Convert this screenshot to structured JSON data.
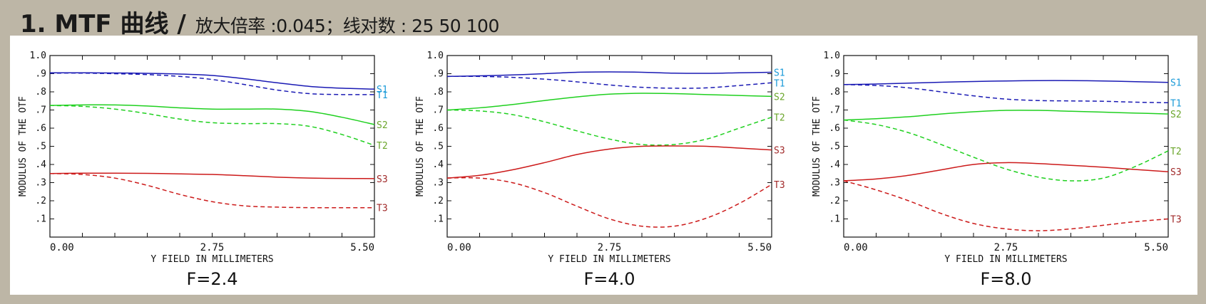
{
  "header": {
    "title": "1. MTF 曲线 /",
    "subtitle": "放大倍率 :0.045；线对数 : 25 50 100"
  },
  "colors": {
    "blue_dark": "#1a1ab4",
    "green": "#1fd01f",
    "red": "#cc1a1a",
    "label_blue": "#1a9ad8",
    "label_green": "#6aa52a",
    "label_red": "#a02828"
  },
  "chart_data": [
    {
      "type": "line",
      "title": "F=2.4",
      "xlabel": "Y FIELD IN MILLIMETERS",
      "ylabel": "MODULUS OF THE OTF",
      "xlim": [
        0,
        5.5
      ],
      "ylim": [
        0,
        1.0
      ],
      "xticks": [
        "0.00",
        "2.75",
        "5.50"
      ],
      "yticks": [
        ".1",
        ".2",
        ".3",
        ".4",
        ".5",
        ".6",
        ".7",
        ".8",
        ".9",
        "1.0"
      ],
      "x": [
        0,
        0.55,
        1.1,
        1.65,
        2.2,
        2.75,
        3.3,
        3.85,
        4.4,
        4.95,
        5.5
      ],
      "series": [
        {
          "name": "S1",
          "color": "blue",
          "dash": false,
          "values": [
            0.905,
            0.905,
            0.904,
            0.902,
            0.898,
            0.89,
            0.872,
            0.85,
            0.83,
            0.82,
            0.815
          ]
        },
        {
          "name": "T1",
          "color": "blue",
          "dash": true,
          "values": [
            0.903,
            0.903,
            0.9,
            0.895,
            0.885,
            0.868,
            0.84,
            0.81,
            0.79,
            0.785,
            0.785
          ]
        },
        {
          "name": "S2",
          "color": "green",
          "dash": false,
          "values": [
            0.725,
            0.728,
            0.728,
            0.722,
            0.712,
            0.705,
            0.705,
            0.705,
            0.692,
            0.66,
            0.62
          ]
        },
        {
          "name": "T2",
          "color": "green",
          "dash": true,
          "values": [
            0.725,
            0.72,
            0.705,
            0.68,
            0.65,
            0.63,
            0.625,
            0.625,
            0.61,
            0.565,
            0.505
          ]
        },
        {
          "name": "S3",
          "color": "red",
          "dash": false,
          "values": [
            0.35,
            0.352,
            0.352,
            0.351,
            0.348,
            0.345,
            0.338,
            0.33,
            0.325,
            0.323,
            0.322
          ]
        },
        {
          "name": "T3",
          "color": "red",
          "dash": true,
          "values": [
            0.35,
            0.345,
            0.325,
            0.285,
            0.235,
            0.195,
            0.172,
            0.165,
            0.162,
            0.162,
            0.162
          ]
        }
      ]
    },
    {
      "type": "line",
      "title": "F=4.0",
      "xlabel": "Y FIELD IN MILLIMETERS",
      "ylabel": "MODULUS OF THE OTF",
      "xlim": [
        0,
        5.5
      ],
      "ylim": [
        0,
        1.0
      ],
      "xticks": [
        "0.00",
        "2.75",
        "5.50"
      ],
      "yticks": [
        ".1",
        ".2",
        ".3",
        ".4",
        ".5",
        ".6",
        ".7",
        ".8",
        ".9",
        "1.0"
      ],
      "x": [
        0,
        0.55,
        1.1,
        1.65,
        2.2,
        2.75,
        3.3,
        3.85,
        4.4,
        4.95,
        5.5
      ],
      "series": [
        {
          "name": "S1",
          "color": "blue",
          "dash": false,
          "values": [
            0.885,
            0.888,
            0.893,
            0.9,
            0.908,
            0.91,
            0.908,
            0.903,
            0.902,
            0.905,
            0.908
          ]
        },
        {
          "name": "T1",
          "color": "blue",
          "dash": true,
          "values": [
            0.885,
            0.885,
            0.88,
            0.87,
            0.855,
            0.838,
            0.825,
            0.82,
            0.822,
            0.835,
            0.85
          ]
        },
        {
          "name": "S2",
          "color": "green",
          "dash": false,
          "values": [
            0.7,
            0.712,
            0.73,
            0.752,
            0.772,
            0.787,
            0.792,
            0.79,
            0.785,
            0.78,
            0.775
          ]
        },
        {
          "name": "T2",
          "color": "green",
          "dash": true,
          "values": [
            0.7,
            0.695,
            0.675,
            0.635,
            0.585,
            0.54,
            0.51,
            0.51,
            0.54,
            0.6,
            0.66
          ]
        },
        {
          "name": "S3",
          "color": "red",
          "dash": false,
          "values": [
            0.325,
            0.34,
            0.37,
            0.41,
            0.455,
            0.485,
            0.5,
            0.502,
            0.5,
            0.49,
            0.48
          ]
        },
        {
          "name": "T3",
          "color": "red",
          "dash": true,
          "values": [
            0.325,
            0.325,
            0.3,
            0.245,
            0.17,
            0.1,
            0.06,
            0.06,
            0.105,
            0.185,
            0.29
          ]
        }
      ]
    },
    {
      "type": "line",
      "title": "F=8.0",
      "xlabel": "Y FIELD IN MILLIMETERS",
      "ylabel": "MODULUS OF THE OTF",
      "xlim": [
        0,
        5.5
      ],
      "ylim": [
        0,
        1.0
      ],
      "xticks": [
        "0.00",
        "2.75",
        "5.50"
      ],
      "yticks": [
        ".1",
        ".2",
        ".3",
        ".4",
        ".5",
        ".6",
        ".7",
        ".8",
        ".9",
        "1.0"
      ],
      "x": [
        0,
        0.55,
        1.1,
        1.65,
        2.2,
        2.75,
        3.3,
        3.85,
        4.4,
        4.95,
        5.5
      ],
      "series": [
        {
          "name": "S1",
          "color": "blue",
          "dash": false,
          "values": [
            0.84,
            0.843,
            0.848,
            0.853,
            0.857,
            0.86,
            0.862,
            0.862,
            0.86,
            0.856,
            0.852
          ]
        },
        {
          "name": "T1",
          "color": "blue",
          "dash": true,
          "values": [
            0.84,
            0.835,
            0.822,
            0.8,
            0.778,
            0.76,
            0.752,
            0.75,
            0.748,
            0.743,
            0.74
          ]
        },
        {
          "name": "S2",
          "color": "green",
          "dash": false,
          "values": [
            0.645,
            0.652,
            0.663,
            0.678,
            0.69,
            0.698,
            0.698,
            0.693,
            0.688,
            0.683,
            0.678
          ]
        },
        {
          "name": "T2",
          "color": "green",
          "dash": true,
          "values": [
            0.645,
            0.62,
            0.575,
            0.51,
            0.44,
            0.375,
            0.33,
            0.31,
            0.325,
            0.39,
            0.475
          ]
        },
        {
          "name": "S3",
          "color": "red",
          "dash": false,
          "values": [
            0.31,
            0.32,
            0.34,
            0.37,
            0.4,
            0.41,
            0.405,
            0.395,
            0.385,
            0.372,
            0.36
          ]
        },
        {
          "name": "T3",
          "color": "red",
          "dash": true,
          "values": [
            0.31,
            0.26,
            0.2,
            0.13,
            0.075,
            0.045,
            0.035,
            0.045,
            0.065,
            0.085,
            0.1
          ]
        }
      ]
    }
  ]
}
